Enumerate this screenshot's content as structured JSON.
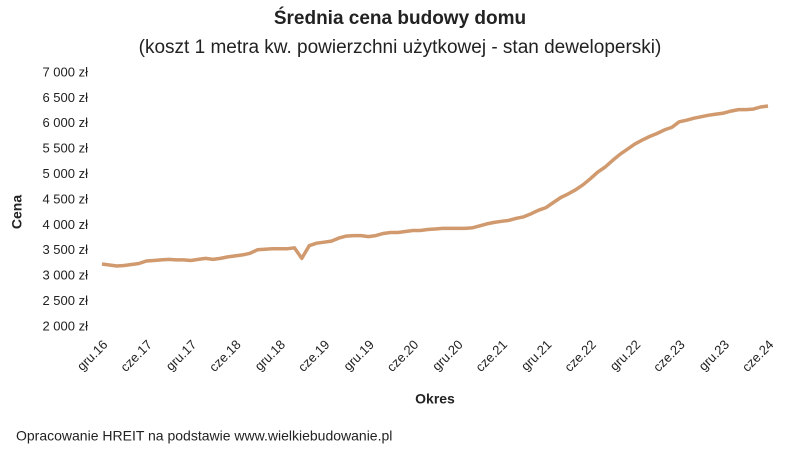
{
  "chart_data": {
    "type": "line",
    "title": "Średnia cena budowy domu",
    "subtitle": "(koszt 1 metra kw. powierzchni użytkowej - stan deweloperski)",
    "x_label": "Okres",
    "y_label": "Cena",
    "source": "Opracowanie HREIT na podstawie www.wielkiebudowanie.pl",
    "categories": [
      "gru.16",
      null,
      null,
      null,
      null,
      null,
      "cze.17",
      null,
      null,
      null,
      null,
      null,
      "gru.17",
      null,
      null,
      null,
      null,
      null,
      "cze.18",
      null,
      null,
      null,
      null,
      null,
      "gru.18",
      null,
      null,
      null,
      null,
      null,
      "cze.19",
      null,
      null,
      null,
      null,
      null,
      "gru.19",
      null,
      null,
      null,
      null,
      null,
      "cze.20",
      null,
      null,
      null,
      null,
      null,
      "gru.20",
      null,
      null,
      null,
      null,
      null,
      "cze.21",
      null,
      null,
      null,
      null,
      null,
      "gru.21",
      null,
      null,
      null,
      null,
      null,
      "cze.22",
      null,
      null,
      null,
      null,
      null,
      "gru.22",
      null,
      null,
      null,
      null,
      null,
      "cze.23",
      null,
      null,
      null,
      null,
      null,
      "gru.23",
      null,
      null,
      null,
      null,
      null,
      "cze.24"
    ],
    "series": [
      {
        "name": "Cena",
        "color": "#d19a6e",
        "values": [
          3240,
          3220,
          3200,
          3210,
          3230,
          3250,
          3300,
          3310,
          3320,
          3330,
          3320,
          3320,
          3310,
          3330,
          3350,
          3330,
          3350,
          3380,
          3400,
          3420,
          3450,
          3520,
          3530,
          3540,
          3540,
          3540,
          3560,
          3350,
          3600,
          3650,
          3670,
          3690,
          3750,
          3790,
          3800,
          3800,
          3780,
          3800,
          3840,
          3860,
          3860,
          3880,
          3900,
          3900,
          3920,
          3930,
          3940,
          3940,
          3940,
          3940,
          3950,
          3990,
          4030,
          4060,
          4080,
          4100,
          4140,
          4170,
          4230,
          4300,
          4350,
          4450,
          4550,
          4620,
          4700,
          4800,
          4920,
          5050,
          5150,
          5280,
          5400,
          5500,
          5600,
          5680,
          5750,
          5810,
          5880,
          5930,
          6040,
          6070,
          6110,
          6140,
          6170,
          6190,
          6210,
          6250,
          6280,
          6280,
          6290,
          6330,
          6350
        ]
      }
    ],
    "ylim": [
      2000,
      7000
    ],
    "yticks": [
      {
        "value": 2000,
        "label": "2 000 zł"
      },
      {
        "value": 2500,
        "label": "2 500 zł"
      },
      {
        "value": 3000,
        "label": "3 000 zł"
      },
      {
        "value": 3500,
        "label": "3 500 zł"
      },
      {
        "value": 4000,
        "label": "4 000 zł"
      },
      {
        "value": 4500,
        "label": "4 500 zł"
      },
      {
        "value": 5000,
        "label": "5 000 zł"
      },
      {
        "value": 5500,
        "label": "5 500 zł"
      },
      {
        "value": 6000,
        "label": "6 000 zł"
      },
      {
        "value": 6500,
        "label": "6 500 zł"
      },
      {
        "value": 7000,
        "label": "7 000 zł"
      }
    ],
    "grid": false
  }
}
